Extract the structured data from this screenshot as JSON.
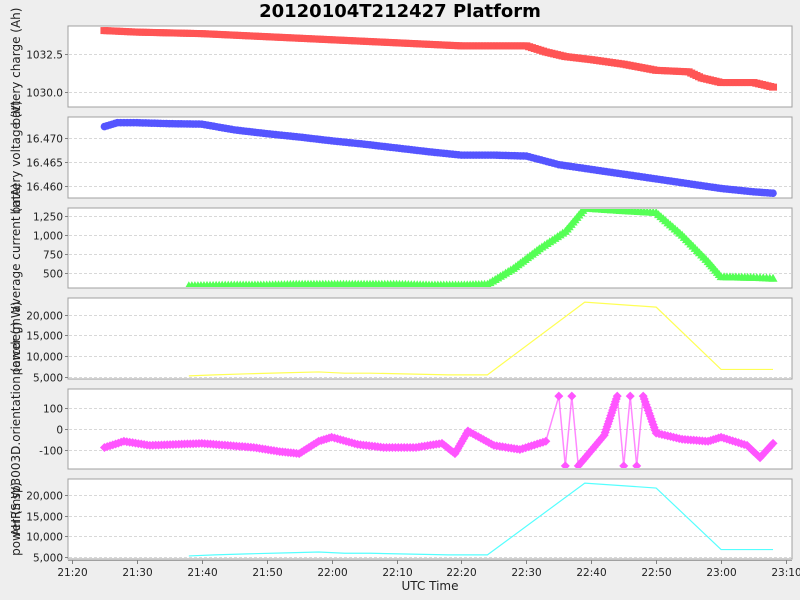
{
  "title": "20120104T212427 Platform",
  "x_axis": {
    "label": "UTC Time",
    "ticks": [
      "21:20",
      "21:30",
      "21:40",
      "21:50",
      "22:00",
      "22:10",
      "22:20",
      "22:30",
      "22:40",
      "22:50",
      "23:00",
      "23:10"
    ]
  },
  "chart_data": [
    {
      "type": "scatter",
      "title": "",
      "ylabel": "battery charge (Ah)",
      "xlabel": "UTC Time",
      "color": "#ff5555",
      "marker": "square",
      "yticks": [
        "1030.0",
        "1032.5"
      ],
      "ylim": [
        1029.0,
        1034.3
      ],
      "x": [
        "21:25",
        "21:30",
        "21:35",
        "21:40",
        "21:45",
        "21:50",
        "21:55",
        "22:00",
        "22:05",
        "22:10",
        "22:15",
        "22:20",
        "22:25",
        "22:30",
        "22:33",
        "22:36",
        "22:40",
        "22:45",
        "22:50",
        "22:55",
        "22:57",
        "23:00",
        "23:05",
        "23:08"
      ],
      "values": [
        1034.0,
        1033.9,
        1033.85,
        1033.8,
        1033.7,
        1033.6,
        1033.5,
        1033.4,
        1033.3,
        1033.2,
        1033.1,
        1033.0,
        1033.0,
        1033.0,
        1032.6,
        1032.3,
        1032.1,
        1031.8,
        1031.4,
        1031.3,
        1030.9,
        1030.6,
        1030.6,
        1030.3
      ]
    },
    {
      "type": "scatter",
      "title": "",
      "ylabel": "battery voltage (V)",
      "xlabel": "UTC Time",
      "color": "#5555ff",
      "marker": "circle",
      "yticks": [
        "16.460",
        "16.465",
        "16.470"
      ],
      "ylim": [
        16.4575,
        16.4745
      ],
      "x": [
        "21:25",
        "21:27",
        "21:30",
        "21:35",
        "21:40",
        "21:45",
        "21:50",
        "21:55",
        "22:00",
        "22:05",
        "22:10",
        "22:15",
        "22:20",
        "22:25",
        "22:30",
        "22:35",
        "22:40",
        "22:45",
        "22:50",
        "22:55",
        "23:00",
        "23:05",
        "23:08"
      ],
      "values": [
        16.4725,
        16.4733,
        16.4733,
        16.4731,
        16.473,
        16.4718,
        16.471,
        16.4703,
        16.4695,
        16.4688,
        16.468,
        16.4672,
        16.4665,
        16.4665,
        16.4663,
        16.4645,
        16.4635,
        16.4625,
        16.4615,
        16.4605,
        16.4595,
        16.4588,
        16.4585
      ]
    },
    {
      "type": "scatter",
      "title": "",
      "ylabel": "average current (mA)",
      "xlabel": "UTC Time",
      "color": "#55ff55",
      "marker": "triangle",
      "yticks": [
        "500",
        "750",
        "1,000",
        "1,250"
      ],
      "ylim": [
        300,
        1360
      ],
      "x": [
        "21:38",
        "21:45",
        "21:50",
        "21:55",
        "22:00",
        "22:05",
        "22:10",
        "22:15",
        "22:20",
        "22:24",
        "22:28",
        "22:32",
        "22:36",
        "22:39",
        "22:44",
        "22:50",
        "22:54",
        "22:58",
        "23:00",
        "23:05",
        "23:08"
      ],
      "values": [
        330,
        340,
        340,
        350,
        350,
        350,
        350,
        340,
        340,
        350,
        560,
        820,
        1050,
        1360,
        1330,
        1300,
        1000,
        650,
        450,
        440,
        430
      ]
    },
    {
      "type": "line",
      "title": "",
      "ylabel": "power (mW)",
      "xlabel": "UTC Time",
      "color": "#ffff55",
      "yticks": [
        "5,000",
        "10,000",
        "15,000",
        "20,000"
      ],
      "ylim": [
        4500,
        24000
      ],
      "x": [
        "21:38",
        "21:42",
        "21:47",
        "21:53",
        "21:58",
        "22:02",
        "22:06",
        "22:18",
        "22:24",
        "22:39",
        "22:50",
        "23:00",
        "23:08"
      ],
      "values": [
        5250,
        5500,
        5750,
        6000,
        6200,
        5900,
        5900,
        5500,
        5500,
        23000,
        21800,
        6800,
        6800
      ]
    },
    {
      "type": "scatter",
      "title": "",
      "ylabel": "AHRS sp3003D.orientation (arcdeg)",
      "xlabel": "UTC Time",
      "color": "#ff55ff",
      "marker": "diamond",
      "yticks": [
        "-100",
        "0",
        "100"
      ],
      "ylim": [
        -195,
        195
      ],
      "x": [
        "21:25",
        "21:28",
        "21:32",
        "21:36",
        "21:40",
        "21:44",
        "21:48",
        "21:52",
        "21:55",
        "21:58",
        "22:00",
        "22:04",
        "22:08",
        "22:13",
        "22:17",
        "22:19",
        "22:21",
        "22:25",
        "22:29",
        "22:33",
        "22:35",
        "22:36",
        "22:37",
        "22:38",
        "22:42",
        "22:44",
        "22:45",
        "22:46",
        "22:47",
        "22:48",
        "22:50",
        "22:54",
        "22:58",
        "23:00",
        "23:04",
        "23:06",
        "23:08"
      ],
      "values": [
        -90,
        -60,
        -80,
        -75,
        -70,
        -80,
        -90,
        -110,
        -120,
        -60,
        -40,
        -75,
        -90,
        -90,
        -70,
        -120,
        -10,
        -80,
        -100,
        -60,
        160,
        -180,
        160,
        -180,
        -30,
        160,
        -180,
        160,
        -180,
        160,
        -20,
        -50,
        -60,
        -40,
        -80,
        -140,
        -70
      ]
    },
    {
      "type": "line",
      "title": "",
      "ylabel": "power (mW)",
      "xlabel": "UTC Time",
      "color": "#55ffff",
      "yticks": [
        "5,000",
        "10,000",
        "15,000",
        "20,000"
      ],
      "ylim": [
        4500,
        24000
      ],
      "x": [
        "21:38",
        "21:42",
        "21:47",
        "21:53",
        "21:58",
        "22:02",
        "22:06",
        "22:18",
        "22:24",
        "22:39",
        "22:50",
        "23:00",
        "23:08"
      ],
      "values": [
        5250,
        5500,
        5750,
        6000,
        6200,
        5900,
        5900,
        5500,
        5500,
        23000,
        21800,
        6800,
        6800
      ]
    }
  ]
}
